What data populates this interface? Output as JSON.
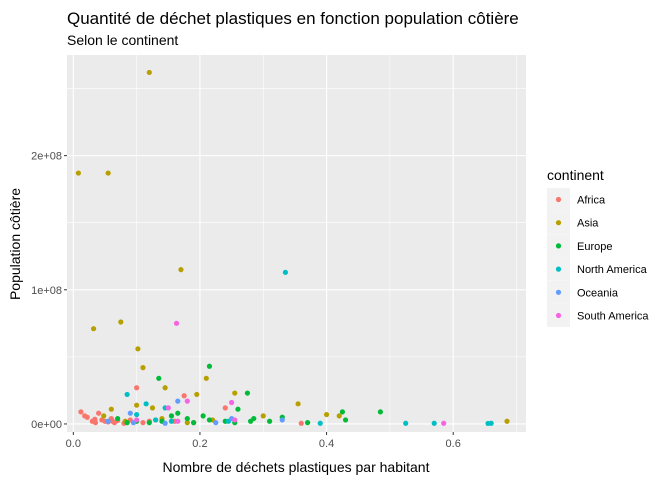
{
  "chart_data": {
    "type": "scatter",
    "title": "Quantité de déchet plastiques en fonction population côtière",
    "subtitle": "Selon le continent",
    "xlabel": "Nombre de déchets plastiques par habitant",
    "ylabel": "Population côtière",
    "xlim": [
      -0.01,
      0.715
    ],
    "ylim": [
      -6000000,
      275000000
    ],
    "x_ticks": [
      {
        "value": 0,
        "label": "0.0"
      },
      {
        "value": 0.2,
        "label": "0.2"
      },
      {
        "value": 0.4,
        "label": "0.4"
      },
      {
        "value": 0.6,
        "label": "0.6"
      }
    ],
    "y_ticks": [
      {
        "value": 0,
        "label": "0e+00"
      },
      {
        "value": 100000000,
        "label": "1e+08"
      },
      {
        "value": 200000000,
        "label": "2e+08"
      }
    ],
    "grid": true,
    "legend": {
      "title": "continent",
      "position": "right"
    },
    "series": [
      {
        "name": "Africa",
        "color": "#F8766D",
        "points": [
          [
            0.012,
            9000000
          ],
          [
            0.018,
            6000000
          ],
          [
            0.022,
            5000000
          ],
          [
            0.03,
            2000000
          ],
          [
            0.035,
            1000000
          ],
          [
            0.04,
            8000000
          ],
          [
            0.045,
            3000000
          ],
          [
            0.05,
            2000000
          ],
          [
            0.055,
            1500000
          ],
          [
            0.06,
            4000000
          ],
          [
            0.065,
            1000000
          ],
          [
            0.07,
            2500000
          ],
          [
            0.08,
            500000
          ],
          [
            0.09,
            3000000
          ],
          [
            0.1,
            27000000
          ],
          [
            0.11,
            1000000
          ],
          [
            0.12,
            2000000
          ],
          [
            0.13,
            3000000
          ],
          [
            0.16,
            2000000
          ],
          [
            0.175,
            21000000
          ],
          [
            0.19,
            1000000
          ],
          [
            0.24,
            12000000
          ],
          [
            0.36,
            500000
          ],
          [
            0.062,
            2000000
          ],
          [
            0.034,
            3500000
          ]
        ]
      },
      {
        "name": "Asia",
        "color": "#B79F00",
        "points": [
          [
            0.008,
            187000000
          ],
          [
            0.055,
            187000000
          ],
          [
            0.12,
            262000000
          ],
          [
            0.17,
            115000000
          ],
          [
            0.075,
            76000000
          ],
          [
            0.032,
            71000000
          ],
          [
            0.102,
            56000000
          ],
          [
            0.11,
            42000000
          ],
          [
            0.21,
            34000000
          ],
          [
            0.145,
            27000000
          ],
          [
            0.255,
            23000000
          ],
          [
            0.195,
            22000000
          ],
          [
            0.1,
            14000000
          ],
          [
            0.125,
            12000000
          ],
          [
            0.06,
            11000000
          ],
          [
            0.048,
            6000000
          ],
          [
            0.082,
            2000000
          ],
          [
            0.3,
            6000000
          ],
          [
            0.355,
            15000000
          ],
          [
            0.4,
            7000000
          ],
          [
            0.42,
            6000000
          ],
          [
            0.685,
            2000000
          ],
          [
            0.22,
            3000000
          ],
          [
            0.18,
            1000000
          ],
          [
            0.14,
            4000000
          ]
        ]
      },
      {
        "name": "Europe",
        "color": "#00BA38",
        "points": [
          [
            0.135,
            34000000
          ],
          [
            0.215,
            43000000
          ],
          [
            0.275,
            23000000
          ],
          [
            0.26,
            11000000
          ],
          [
            0.285,
            4000000
          ],
          [
            0.31,
            2000000
          ],
          [
            0.33,
            5000000
          ],
          [
            0.37,
            1000000
          ],
          [
            0.425,
            9000000
          ],
          [
            0.43,
            3000000
          ],
          [
            0.485,
            9000000
          ],
          [
            0.24,
            2000000
          ],
          [
            0.215,
            3000000
          ],
          [
            0.18,
            4000000
          ],
          [
            0.165,
            8000000
          ],
          [
            0.155,
            6000000
          ],
          [
            0.14,
            2000000
          ],
          [
            0.12,
            1000000
          ],
          [
            0.1,
            2000000
          ],
          [
            0.085,
            1000000
          ],
          [
            0.19,
            1000000
          ],
          [
            0.28,
            2000000
          ],
          [
            0.205,
            6000000
          ],
          [
            0.255,
            1000000
          ],
          [
            0.07,
            4000000
          ]
        ]
      },
      {
        "name": "North America",
        "color": "#00BFC4",
        "points": [
          [
            0.335,
            113000000
          ],
          [
            0.085,
            22000000
          ],
          [
            0.115,
            15000000
          ],
          [
            0.145,
            12000000
          ],
          [
            0.155,
            2000000
          ],
          [
            0.245,
            2000000
          ],
          [
            0.39,
            500000
          ],
          [
            0.525,
            500000
          ],
          [
            0.57,
            500000
          ],
          [
            0.66,
            500000
          ],
          [
            0.655,
            400000
          ],
          [
            0.13,
            3000000
          ],
          [
            0.1,
            7000000
          ]
        ]
      },
      {
        "name": "Oceania",
        "color": "#619CFF",
        "points": [
          [
            0.09,
            8000000
          ],
          [
            0.165,
            17000000
          ],
          [
            0.25,
            4000000
          ],
          [
            0.33,
            3000000
          ],
          [
            0.095,
            1000000
          ],
          [
            0.145,
            500000
          ],
          [
            0.225,
            1000000
          ],
          [
            0.055,
            2000000
          ]
        ]
      },
      {
        "name": "South America",
        "color": "#F564E3",
        "points": [
          [
            0.163,
            75000000
          ],
          [
            0.18,
            17000000
          ],
          [
            0.25,
            16000000
          ],
          [
            0.15,
            12000000
          ],
          [
            0.165,
            2000000
          ],
          [
            0.255,
            3000000
          ],
          [
            0.585,
            500000
          ],
          [
            0.1,
            3000000
          ]
        ]
      }
    ]
  }
}
